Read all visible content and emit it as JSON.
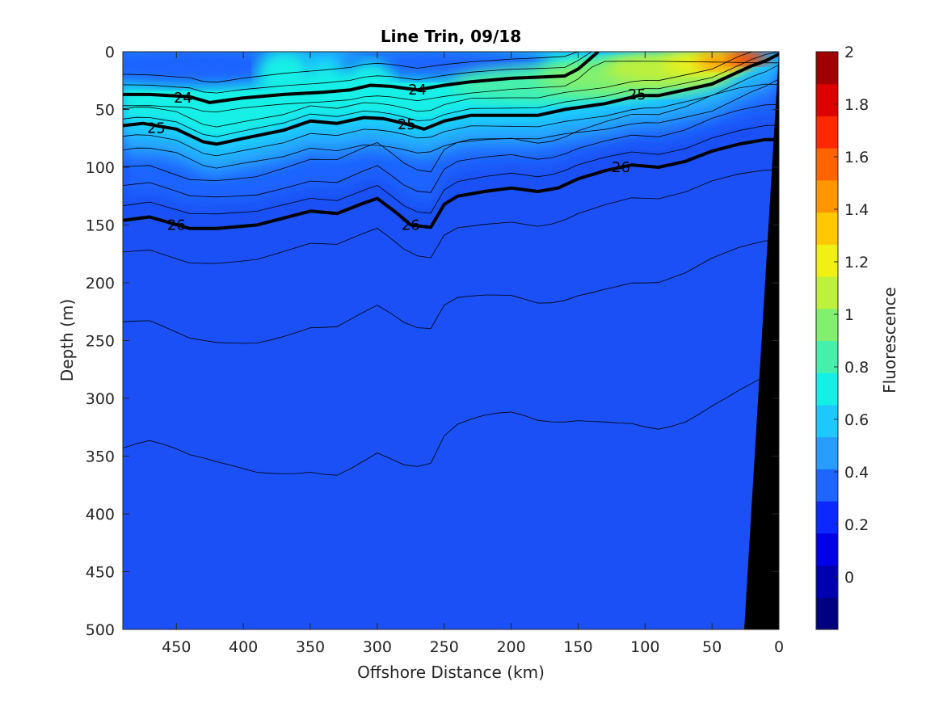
{
  "chart_data": {
    "type": "heatmap",
    "title": "Line Trin, 09/18",
    "xlabel": "Offshore Distance (km)",
    "ylabel": "Depth (m)",
    "xlim": [
      490,
      0
    ],
    "ylim": [
      0,
      500
    ],
    "x_reversed": true,
    "y_reversed": true,
    "xticks": [
      450,
      400,
      350,
      300,
      250,
      200,
      150,
      100,
      50,
      0
    ],
    "yticks": [
      0,
      50,
      100,
      150,
      200,
      250,
      300,
      350,
      400,
      450,
      500
    ],
    "colorbar": {
      "label": "Fluorescence",
      "range": [
        -0.2,
        2
      ],
      "ticks": [
        0,
        0.2,
        0.4,
        0.6,
        0.8,
        1,
        1.2,
        1.4,
        1.6,
        1.8,
        2
      ],
      "tick_labels": [
        "0",
        "0.2",
        "0.4",
        "0.6",
        "0.8",
        "1",
        "1.2",
        "1.4",
        "1.6",
        "1.8",
        "2"
      ],
      "colors": [
        "#000080",
        "#0000b0",
        "#0000e8",
        "#0a28ff",
        "#1e64ff",
        "#289cff",
        "#1ec8ff",
        "#14f0e6",
        "#46f0aa",
        "#82f06e",
        "#bef03c",
        "#f0f014",
        "#ffc800",
        "#ff9600",
        "#ff6400",
        "#ff2800",
        "#dc0000",
        "#a00000"
      ]
    },
    "fluorescence_max": {
      "distance_km": 20,
      "depth_m": 5,
      "value": 1.9
    },
    "density_contours": [
      {
        "label": "24",
        "points": [
          [
            490,
            37
          ],
          [
            470,
            37
          ],
          [
            440,
            39
          ],
          [
            425,
            44
          ],
          [
            400,
            40
          ],
          [
            370,
            37
          ],
          [
            340,
            35
          ],
          [
            320,
            33
          ],
          [
            305,
            29
          ],
          [
            290,
            30
          ],
          [
            270,
            33
          ],
          [
            250,
            29
          ],
          [
            230,
            26
          ],
          [
            200,
            23
          ],
          [
            180,
            22
          ],
          [
            160,
            21
          ],
          [
            150,
            15
          ],
          [
            140,
            5
          ],
          [
            135,
            0
          ]
        ],
        "label_positions": [
          [
            445,
            40
          ],
          [
            270,
            33
          ]
        ]
      },
      {
        "label": "25",
        "points": [
          [
            490,
            64
          ],
          [
            475,
            62
          ],
          [
            450,
            67
          ],
          [
            430,
            78
          ],
          [
            420,
            80
          ],
          [
            400,
            75
          ],
          [
            370,
            68
          ],
          [
            350,
            60
          ],
          [
            330,
            62
          ],
          [
            310,
            57
          ],
          [
            295,
            58
          ],
          [
            280,
            62
          ],
          [
            265,
            67
          ],
          [
            250,
            60
          ],
          [
            230,
            55
          ],
          [
            200,
            55
          ],
          [
            180,
            55
          ],
          [
            160,
            50
          ],
          [
            130,
            45
          ],
          [
            105,
            38
          ],
          [
            90,
            38
          ],
          [
            70,
            33
          ],
          [
            50,
            28
          ],
          [
            35,
            20
          ],
          [
            20,
            12
          ],
          [
            10,
            8
          ],
          [
            0,
            2
          ]
        ],
        "label_positions": [
          [
            465,
            66
          ],
          [
            278,
            63
          ],
          [
            106,
            37
          ]
        ]
      },
      {
        "label": "26",
        "points": [
          [
            490,
            146
          ],
          [
            470,
            143
          ],
          [
            440,
            153
          ],
          [
            420,
            153
          ],
          [
            390,
            150
          ],
          [
            370,
            144
          ],
          [
            350,
            138
          ],
          [
            330,
            140
          ],
          [
            310,
            131
          ],
          [
            300,
            127
          ],
          [
            285,
            140
          ],
          [
            275,
            150
          ],
          [
            260,
            152
          ],
          [
            250,
            132
          ],
          [
            240,
            125
          ],
          [
            220,
            121
          ],
          [
            200,
            118
          ],
          [
            180,
            121
          ],
          [
            165,
            118
          ],
          [
            150,
            110
          ],
          [
            130,
            103
          ],
          [
            110,
            98
          ],
          [
            90,
            100
          ],
          [
            70,
            95
          ],
          [
            50,
            86
          ],
          [
            30,
            80
          ],
          [
            10,
            76
          ],
          [
            0,
            76
          ]
        ],
        "label_positions": [
          [
            450,
            150
          ],
          [
            275,
            150
          ],
          [
            118,
            100
          ]
        ]
      }
    ]
  }
}
